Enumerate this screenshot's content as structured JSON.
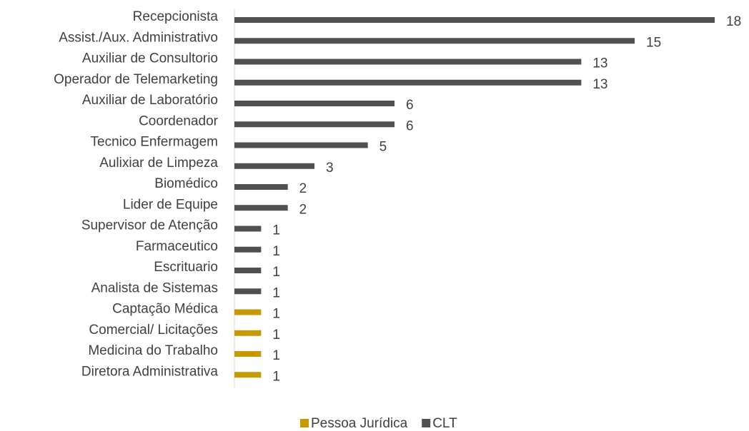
{
  "chart_data": {
    "type": "bar",
    "orientation": "horizontal",
    "categories": [
      "Recepcionista",
      "Assist./Aux. Administrativo",
      "Auxiliar de Consultorio",
      "Operador de Telemarketing",
      "Auxiliar de Laboratório",
      "Coordenador",
      "Tecnico Enfermagem",
      "Aulixiar de Limpeza",
      "Biomédico",
      "Lider de Equipe",
      "Supervisor de Atenção",
      "Farmaceutico",
      "Escrituario",
      "Analista de Sistemas",
      "Captação Médica",
      "Comercial/ Licitações",
      "Medicina do Trabalho",
      "Diretora Administrativa"
    ],
    "series": [
      {
        "name": "Pessoa Jurídica",
        "color": "#c59a00",
        "values": [
          null,
          null,
          null,
          null,
          null,
          null,
          null,
          null,
          null,
          null,
          null,
          null,
          null,
          null,
          1,
          1,
          1,
          1
        ]
      },
      {
        "name": "CLT",
        "color": "#505050",
        "values": [
          18,
          15,
          13,
          13,
          6,
          6,
          5,
          3,
          2,
          2,
          1,
          1,
          1,
          1,
          null,
          null,
          null,
          null
        ]
      }
    ],
    "xlim": [
      0,
      18
    ],
    "legend": "bottom"
  }
}
